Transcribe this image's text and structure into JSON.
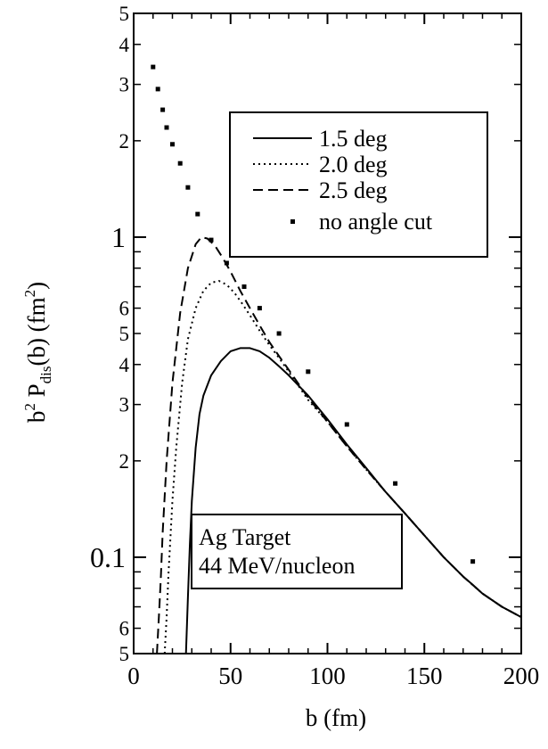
{
  "chart_data": {
    "type": "line",
    "title": "",
    "xlabel": "b (fm)",
    "ylabel": {
      "base": "b",
      "sup1": "2",
      "mid": " P",
      "sub": "dis",
      "mid2": "(b) (fm",
      "sup2": "2",
      "end": ")"
    },
    "xlim": [
      0,
      200
    ],
    "ylim": [
      0.05,
      5
    ],
    "y_scale": "log",
    "grid": false,
    "x_ticks": [
      {
        "value": 0,
        "label": "0"
      },
      {
        "value": 50,
        "label": "50"
      },
      {
        "value": 100,
        "label": "100"
      },
      {
        "value": 150,
        "label": "150"
      },
      {
        "value": 200,
        "label": "200"
      }
    ],
    "y_major_ticks": [
      {
        "value": 0.1,
        "label": "0.1"
      },
      {
        "value": 1,
        "label": "1"
      }
    ],
    "y_minor_ticks": [
      {
        "value": 0.05,
        "label": "5"
      },
      {
        "value": 0.06,
        "label": "6"
      },
      {
        "value": 0.2,
        "label": "2"
      },
      {
        "value": 0.3,
        "label": "3"
      },
      {
        "value": 0.4,
        "label": "4"
      },
      {
        "value": 0.5,
        "label": "5"
      },
      {
        "value": 0.6,
        "label": "6"
      },
      {
        "value": 2,
        "label": "2"
      },
      {
        "value": 3,
        "label": "3"
      },
      {
        "value": 4,
        "label": "4"
      },
      {
        "value": 5,
        "label": "5"
      }
    ],
    "legend_position": "upper-right",
    "series": [
      {
        "name": "1.5 deg",
        "style": "solid",
        "x": [
          27,
          28,
          29,
          30,
          32,
          34,
          36,
          40,
          45,
          50,
          55,
          60,
          65,
          70,
          75,
          80,
          90,
          100,
          110,
          120,
          130,
          140,
          150,
          160,
          170,
          175,
          180,
          190,
          200
        ],
        "y": [
          0.05,
          0.075,
          0.11,
          0.15,
          0.22,
          0.28,
          0.32,
          0.37,
          0.41,
          0.44,
          0.45,
          0.45,
          0.44,
          0.42,
          0.395,
          0.37,
          0.32,
          0.27,
          0.225,
          0.19,
          0.16,
          0.137,
          0.117,
          0.1,
          0.087,
          0.082,
          0.077,
          0.07,
          0.065
        ]
      },
      {
        "name": "2.0 deg",
        "style": "dotted",
        "x": [
          16,
          17,
          18,
          20,
          22,
          25,
          28,
          32,
          36,
          40,
          44,
          48,
          52,
          56,
          60,
          65,
          70,
          75,
          80,
          90,
          100,
          110,
          120,
          130,
          140,
          150,
          160,
          170,
          180,
          190,
          200
        ],
        "y": [
          0.05,
          0.065,
          0.09,
          0.15,
          0.22,
          0.35,
          0.48,
          0.6,
          0.68,
          0.72,
          0.73,
          0.71,
          0.67,
          0.62,
          0.57,
          0.51,
          0.46,
          0.42,
          0.38,
          0.31,
          0.265,
          0.222,
          0.188,
          0.16,
          0.137,
          0.117,
          0.1,
          0.087,
          0.077,
          0.07,
          0.065
        ]
      },
      {
        "name": "2.5 deg",
        "style": "dashed",
        "x": [
          12,
          13,
          14,
          15,
          17,
          20,
          24,
          28,
          32,
          35,
          38,
          42,
          46,
          50,
          55,
          60,
          65,
          70,
          75,
          80,
          90,
          100,
          110,
          120,
          130,
          140,
          150,
          160,
          170,
          180,
          190,
          200
        ],
        "y": [
          0.05,
          0.065,
          0.085,
          0.12,
          0.2,
          0.35,
          0.58,
          0.8,
          0.95,
          1.0,
          0.99,
          0.94,
          0.86,
          0.78,
          0.68,
          0.6,
          0.53,
          0.47,
          0.425,
          0.385,
          0.315,
          0.265,
          0.222,
          0.188,
          0.16,
          0.137,
          0.117,
          0.1,
          0.087,
          0.077,
          0.07,
          0.065
        ]
      },
      {
        "name": "no angle cut",
        "style": "dotted-squares",
        "x": [
          10,
          12.5,
          15,
          17,
          20,
          24,
          28,
          33,
          40,
          48,
          57,
          65,
          75,
          90,
          110,
          135,
          175
        ],
        "y": [
          3.4,
          2.9,
          2.5,
          2.2,
          1.95,
          1.7,
          1.43,
          1.18,
          0.98,
          0.83,
          0.7,
          0.6,
          0.5,
          0.38,
          0.26,
          0.17,
          0.097
        ]
      }
    ],
    "annotation": [
      "Ag Target",
      "44 MeV/nucleon"
    ]
  }
}
